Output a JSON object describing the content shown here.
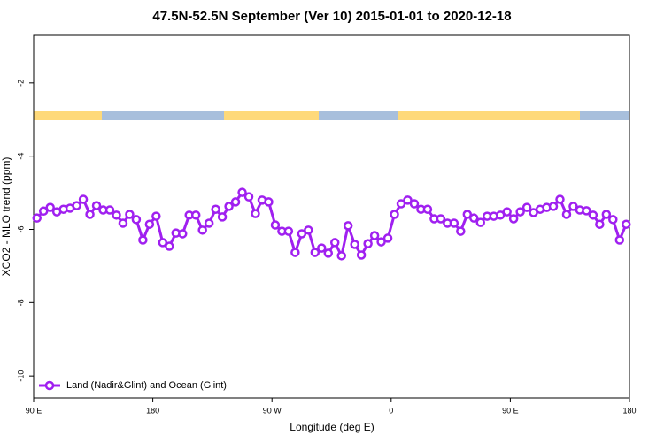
{
  "chart_data": {
    "type": "line",
    "title": "47.5N-52.5N September (Ver 10)   2015-01-01 to 2020-12-18",
    "x_label": "Longitude (deg E)",
    "y_label": "XCO2 - MLO trend (ppm)",
    "x": [
      92.5,
      97.5,
      102.5,
      107.5,
      112.5,
      117.5,
      122.5,
      127.5,
      132.5,
      137.5,
      142.5,
      147.5,
      152.5,
      157.5,
      162.5,
      167.5,
      172.5,
      177.5,
      182.5,
      187.5,
      192.5,
      197.5,
      202.5,
      207.5,
      212.5,
      217.5,
      222.5,
      227.5,
      232.5,
      237.5,
      242.5,
      247.5,
      252.5,
      257.5,
      262.5,
      267.5,
      272.5,
      277.5,
      282.5,
      287.5,
      292.5,
      297.5,
      302.5,
      307.5,
      312.5,
      317.5,
      322.5,
      327.5,
      332.5,
      337.5,
      342.5,
      347.5,
      352.5,
      357.5,
      362.5,
      367.5,
      372.5,
      377.5,
      382.5,
      387.5,
      392.5,
      397.5,
      402.5,
      407.5,
      412.5,
      417.5,
      422.5,
      427.5,
      432.5,
      437.5,
      442.5,
      447.5,
      452.5,
      457.5,
      462.5,
      467.5,
      472.5,
      477.5,
      482.5,
      487.5,
      492.5,
      497.5,
      502.5,
      507.5,
      512.5,
      517.5,
      522.5,
      527.5,
      532.5,
      537.5
    ],
    "series": [
      {
        "name": "Land (Nadir&Glint) and Ocean (Glint)",
        "color": "#a020f0",
        "values": [
          -5.69,
          -5.5,
          -5.4,
          -5.52,
          -5.45,
          -5.42,
          -5.35,
          -5.18,
          -5.59,
          -5.35,
          -5.47,
          -5.47,
          -5.61,
          -5.83,
          -5.59,
          -5.73,
          -6.29,
          -5.86,
          -5.64,
          -6.36,
          -6.46,
          -6.1,
          -6.12,
          -5.61,
          -5.61,
          -6.02,
          -5.83,
          -5.45,
          -5.66,
          -5.37,
          -5.25,
          -4.99,
          -5.11,
          -5.57,
          -5.2,
          -5.25,
          -5.88,
          -6.05,
          -6.05,
          -6.63,
          -6.12,
          -6.02,
          -6.63,
          -6.51,
          -6.65,
          -6.36,
          -6.72,
          -5.9,
          -6.41,
          -6.7,
          -6.39,
          -6.17,
          -6.34,
          -6.24,
          -5.59,
          -5.3,
          -5.2,
          -5.3,
          -5.45,
          -5.45,
          -5.71,
          -5.71,
          -5.83,
          -5.83,
          -6.05,
          -5.59,
          -5.69,
          -5.81,
          -5.64,
          -5.64,
          -5.61,
          -5.52,
          -5.71,
          -5.52,
          -5.4,
          -5.54,
          -5.45,
          -5.4,
          -5.37,
          -5.18,
          -5.59,
          -5.37,
          -5.47,
          -5.49,
          -5.61,
          -5.86,
          -5.59,
          -5.73,
          -6.29,
          -5.86
        ]
      }
    ],
    "xlim": [
      90,
      540
    ],
    "xticks": [
      {
        "value": 90,
        "label": "90 E"
      },
      180,
      {
        "value": 270,
        "label": "90 W"
      },
      {
        "value": 360,
        "label": "0"
      },
      {
        "value": 450,
        "label": "90 E"
      },
      {
        "value": 540,
        "label": "180"
      }
    ],
    "ylim": [
      -10.6,
      -0.7
    ],
    "yticks": [
      -2,
      -4,
      -6,
      -8,
      -10
    ],
    "legend": "bottom-left"
  }
}
